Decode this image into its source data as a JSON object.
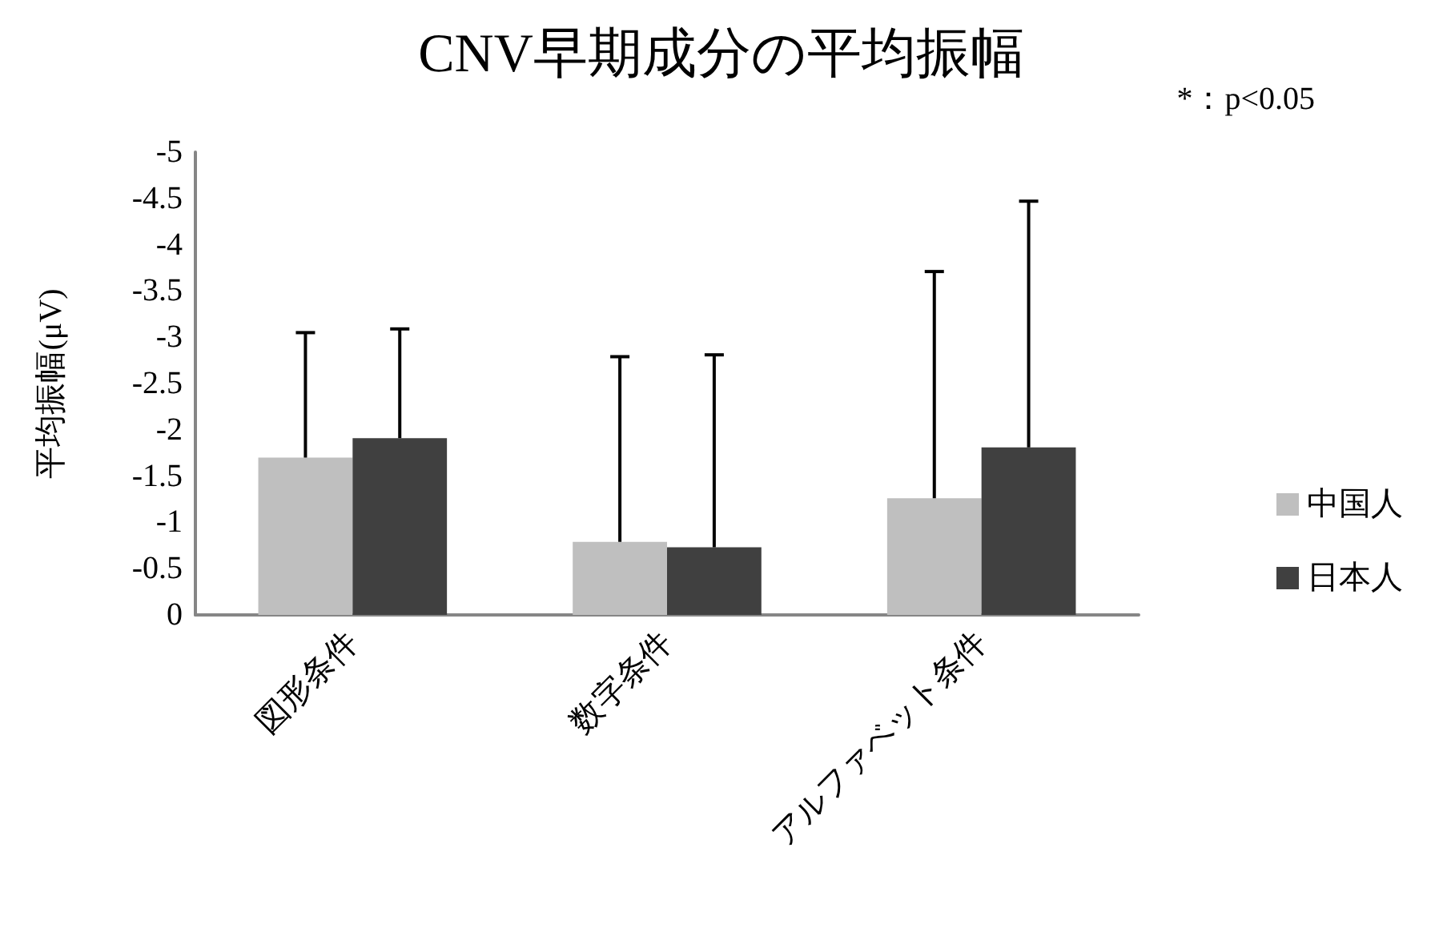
{
  "chart_data": {
    "type": "bar",
    "title": "CNV早期成分の平均振幅",
    "ylabel": "平均振幅(μV)",
    "categories": [
      "図形条件",
      "数字条件",
      "アルファベット条件"
    ],
    "series": [
      {
        "name": "中国人",
        "color": "#bfbfbf",
        "values": [
          -1.7,
          -0.79,
          -1.26
        ],
        "errors": [
          [
            -3.05,
            -1.7
          ],
          [
            -2.79,
            -0.79
          ],
          [
            -3.71,
            -1.26
          ]
        ]
      },
      {
        "name": "日本人",
        "color": "#404040",
        "values": [
          -1.91,
          -0.73,
          -1.81
        ],
        "errors": [
          [
            -3.09,
            -1.91
          ],
          [
            -2.81,
            -0.73
          ],
          [
            -4.47,
            -1.81
          ]
        ]
      }
    ],
    "ylim": [
      0,
      -5
    ],
    "yticks": [
      0,
      -0.5,
      -1,
      -1.5,
      -2,
      -2.5,
      -3,
      -3.5,
      -4,
      -4.5,
      -5
    ],
    "annotations": [
      "*：p<0.05"
    ],
    "legend": "right",
    "grid": false
  }
}
